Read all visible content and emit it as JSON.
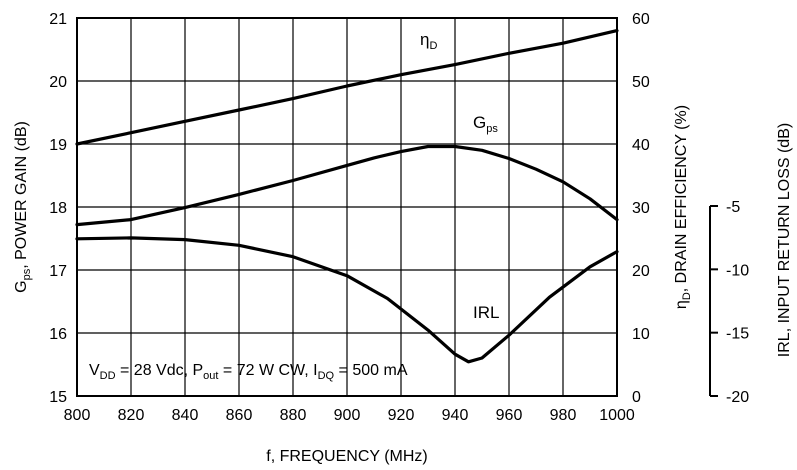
{
  "chart_data": {
    "type": "line",
    "title": "",
    "xlabel": "f, FREQUENCY (MHz)",
    "x_ticks": [
      "800",
      "820",
      "840",
      "860",
      "880",
      "900",
      "920",
      "940",
      "960",
      "980",
      "1000"
    ],
    "xlim": [
      800,
      1000
    ],
    "grid": true,
    "y_left": {
      "label_main": "G",
      "label_sub": "ps",
      "label_rest": ", POWER GAIN (dB)",
      "lim": [
        15,
        21
      ],
      "ticks": [
        "15",
        "16",
        "17",
        "18",
        "19",
        "20",
        "21"
      ]
    },
    "y_right": {
      "label_main": "η",
      "label_sub": "D",
      "label_rest": ", DRAIN EFFICIENCY (%)",
      "lim": [
        0,
        60
      ],
      "ticks": [
        "0",
        "10",
        "20",
        "30",
        "40",
        "50",
        "60"
      ]
    },
    "y_irl": {
      "label": "IRL, INPUT RETURN LOSS (dB)",
      "lim": [
        -20,
        -5
      ],
      "ticks": [
        "-5",
        "-10",
        "-15",
        "-20"
      ]
    },
    "annotation": {
      "parts": [
        {
          "t": "V"
        },
        {
          "t": "DD",
          "sub": true
        },
        {
          "t": " = 28 Vdc, P"
        },
        {
          "t": "out",
          "sub": true
        },
        {
          "t": " = 72 W CW, I"
        },
        {
          "t": "DQ",
          "sub": true
        },
        {
          "t": " = 500 mA"
        }
      ]
    },
    "series": [
      {
        "name": "ηD",
        "label_main": "η",
        "label_sub": "D",
        "axis": "y_right",
        "x": [
          800,
          820,
          840,
          860,
          880,
          900,
          920,
          940,
          960,
          980,
          1000
        ],
        "values": [
          40,
          41.8,
          43.6,
          45.4,
          47.2,
          49.2,
          51,
          52.6,
          54.4,
          56,
          58
        ]
      },
      {
        "name": "Gps",
        "label_main": "G",
        "label_sub": "ps",
        "axis": "y_left",
        "x": [
          800,
          820,
          840,
          860,
          880,
          900,
          910,
          920,
          930,
          940,
          950,
          960,
          970,
          980,
          990,
          1000
        ],
        "values": [
          17.72,
          17.8,
          17.99,
          18.2,
          18.42,
          18.66,
          18.78,
          18.88,
          18.96,
          18.96,
          18.9,
          18.77,
          18.6,
          18.4,
          18.13,
          17.8
        ]
      },
      {
        "name": "IRL",
        "label_main": "IRL",
        "axis": "y_irl",
        "x": [
          800,
          820,
          840,
          860,
          880,
          900,
          915,
          930,
          940,
          945,
          950,
          960,
          975,
          990,
          1000
        ],
        "values": [
          -7.59,
          -7.52,
          -7.65,
          -8.1,
          -9.0,
          -10.5,
          -12.3,
          -14.8,
          -16.7,
          -17.3,
          -17.0,
          -15.2,
          -12.2,
          -9.8,
          -8.6
        ]
      }
    ]
  }
}
